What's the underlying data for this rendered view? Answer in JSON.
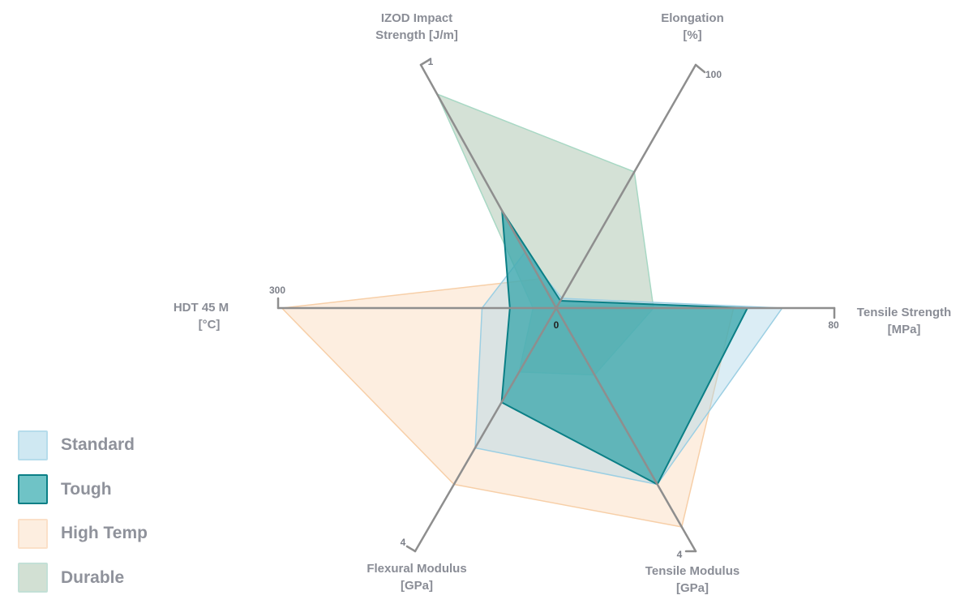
{
  "chart_data": {
    "type": "radar",
    "title": "",
    "center_label": "0",
    "axes": [
      {
        "key": "tensile_strength",
        "label_lines": [
          "Tensile Strength",
          "[MPa]"
        ],
        "max_label": "80",
        "max": 80
      },
      {
        "key": "elongation",
        "label_lines": [
          "Elongation",
          "[%]"
        ],
        "max_label": "100",
        "max": 100
      },
      {
        "key": "izod",
        "label_lines": [
          "IZOD Impact",
          "Strength [J/m]"
        ],
        "max_label": "1",
        "max": 1
      },
      {
        "key": "hdt",
        "label_lines": [
          "HDT        45 M",
          "[°C]"
        ],
        "max_label": "300",
        "max": 300
      },
      {
        "key": "flexural_modulus",
        "label_lines": [
          "Flexural Modulus",
          "[GPa]"
        ],
        "max_label": "4",
        "max": 4
      },
      {
        "key": "tensile_modulus",
        "label_lines": [
          "Tensile Modulus",
          "[GPa]"
        ],
        "max_label": "4",
        "max": 4
      }
    ],
    "series": [
      {
        "name": "High Temp",
        "color": "#fbd7b4",
        "stroke": "#f7cfa8",
        "values": [
          51,
          1,
          0.12,
          296,
          2.9,
          3.6
        ]
      },
      {
        "name": "Durable",
        "color": "#9fbda3",
        "stroke": "#a8d8c4",
        "values": [
          28,
          56,
          0.88,
          25,
          1.05,
          1.1
        ]
      },
      {
        "name": "Standard",
        "color": "#a9d5e6",
        "stroke": "#9ccfe3",
        "values": [
          65,
          4,
          0.23,
          80,
          2.3,
          2.9
        ]
      },
      {
        "name": "Tough",
        "color": "#3ea8ad",
        "stroke": "#0b7f86",
        "values": [
          55,
          3,
          0.4,
          50,
          1.55,
          2.9
        ]
      }
    ],
    "legend": {
      "position": "bottom-left"
    }
  },
  "legend": {
    "items": [
      {
        "label": "Standard",
        "color": "#cfe8f2",
        "border": "#b6dceb"
      },
      {
        "label": "Tough",
        "color": "#6fc3c6",
        "border": "#0b7f86"
      },
      {
        "label": "High Temp",
        "color": "#fdeee0",
        "border": "#fbe0c8"
      },
      {
        "label": "Durable",
        "color": "#d2e0d3",
        "border": "#c3e0d6"
      }
    ]
  }
}
